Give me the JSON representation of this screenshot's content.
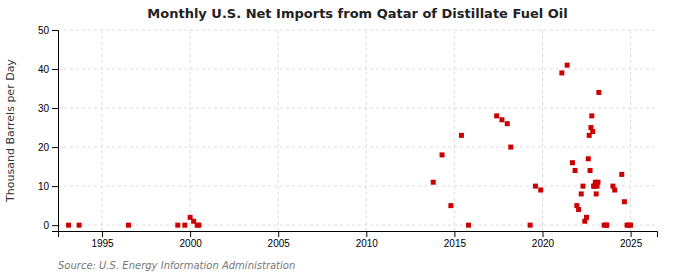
{
  "chart_data": {
    "type": "scatter",
    "title": "Monthly U.S. Net Imports from Qatar of Distillate Fuel Oil",
    "ylabel": "Thousand Barrels per Day",
    "annotations": [
      "Source: U.S. Energy Information Administration"
    ],
    "x": [
      1993.1,
      1993.7,
      1996.5,
      1999.3,
      1999.7,
      2000.0,
      2000.2,
      2000.4,
      2000.5,
      2013.8,
      2014.3,
      2014.8,
      2015.4,
      2017.4,
      2017.7,
      2018.0,
      2018.2,
      2019.3,
      2019.6,
      2019.9,
      2015.8,
      2021.1,
      2021.4,
      2021.7,
      2021.85,
      2021.95,
      2022.05,
      2022.2,
      2022.3,
      2022.4,
      2022.5,
      2022.6,
      2022.65,
      2022.7,
      2022.75,
      2022.8,
      2022.85,
      2022.9,
      2022.95,
      2023.0,
      2023.05,
      2023.1,
      2023.15,
      2023.2,
      2023.5,
      2023.6,
      2023.65,
      2024.0,
      2024.1,
      2024.5,
      2024.65,
      2024.8,
      2024.9,
      2025.0
    ],
    "values": [
      0,
      0,
      0,
      0,
      0,
      2,
      1,
      0,
      0,
      11,
      18,
      5,
      23,
      28,
      27,
      26,
      20,
      0,
      10,
      9,
      0,
      39,
      41,
      16,
      14,
      5,
      4,
      8,
      10,
      1,
      2,
      17,
      23,
      14,
      25,
      28,
      24,
      10,
      10,
      11,
      8,
      10,
      11,
      34,
      0,
      0,
      0,
      10,
      9,
      13,
      6,
      0,
      0,
      0
    ],
    "color": "#cc0000",
    "marker": "square",
    "xlim": [
      1992.5,
      2026.5
    ],
    "ylim": [
      -1.5,
      50
    ],
    "xticks": [
      1995,
      2000,
      2005,
      2010,
      2015,
      2020,
      2025
    ],
    "yticks": [
      0,
      10,
      20,
      30,
      40,
      50
    ],
    "grid": true
  }
}
